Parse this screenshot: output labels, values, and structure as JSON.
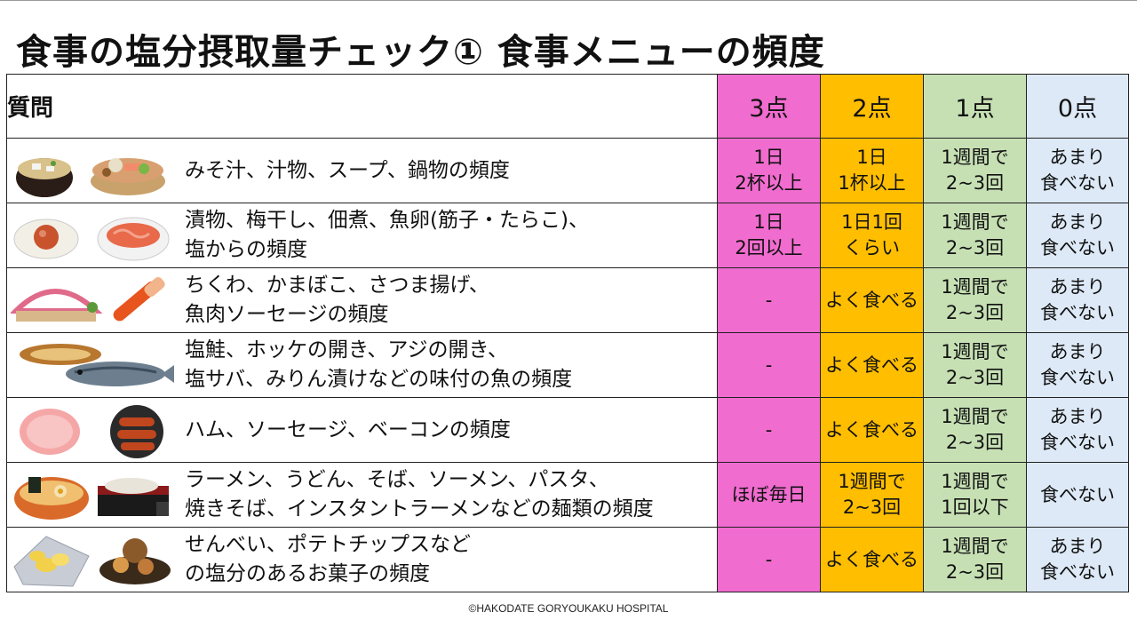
{
  "title": "食事の塩分摂取量チェック① 食事メニューの頻度",
  "header": {
    "question": "質問",
    "p3": "3点",
    "p2": "2点",
    "p1": "1点",
    "p0": "0点"
  },
  "colors": {
    "p3": "#f06ccf",
    "p2": "#ffbe00",
    "p1": "#c6e0b4",
    "p0": "#dde9f6"
  },
  "rows": [
    {
      "q1": "みそ汁、汁物、スープ、鍋物の頻度",
      "q2": "",
      "a3a": "1日",
      "a3b": "2杯以上",
      "a2a": "1日",
      "a2b": "1杯以上",
      "a1a": "1週間で",
      "a1b": "2~3回",
      "a0a": "あまり",
      "a0b": "食べない",
      "icons": [
        "miso-soup-icon",
        "hot-pot-icon"
      ]
    },
    {
      "q1": "漬物、梅干し、佃煮、魚卵(筋子・たらこ)、",
      "q2": "塩からの頻度",
      "a3a": "1日",
      "a3b": "2回以上",
      "a2a": "1日1回",
      "a2b": "くらい",
      "a1a": "1週間で",
      "a1b": "2~3回",
      "a0a": "あまり",
      "a0b": "食べない",
      "icons": [
        "umeboshi-icon",
        "shiokara-icon"
      ]
    },
    {
      "q1": "ちくわ、かまぼこ、さつま揚げ、",
      "q2": "魚肉ソーセージの頻度",
      "a3a": "-",
      "a3b": "",
      "a2a": "よく食べる",
      "a2b": "",
      "a1a": "1週間で",
      "a1b": "2~3回",
      "a0a": "あまり",
      "a0b": "食べない",
      "icons": [
        "kamaboko-icon",
        "fish-sausage-icon"
      ]
    },
    {
      "q1": "塩鮭、ホッケの開き、アジの開き、",
      "q2": "塩サバ、みりん漬けなどの味付の魚の頻度",
      "a3a": "-",
      "a3b": "",
      "a2a": "よく食べる",
      "a2b": "",
      "a1a": "1週間で",
      "a1b": "2~3回",
      "a0a": "あまり",
      "a0b": "食べない",
      "icons": [
        "grilled-fish-icon",
        "salted-mackerel-icon"
      ]
    },
    {
      "q1": "ハム、ソーセージ、ベーコンの頻度",
      "q2": "",
      "a3a": "-",
      "a3b": "",
      "a2a": "よく食べる",
      "a2b": "",
      "a1a": "1週間で",
      "a1b": "2~3回",
      "a0a": "あまり",
      "a0b": "食べない",
      "icons": [
        "ham-icon",
        "sausage-pan-icon"
      ]
    },
    {
      "q1": "ラーメン、うどん、そば、ソーメン、パスタ、",
      "q2": "焼きそば、インスタントラーメンなどの麺類の頻度",
      "a3a": "ほぼ毎日",
      "a3b": "",
      "a2a": "1週間で",
      "a2b": "2~3回",
      "a1a": "1週間で",
      "a1b": "1回以下",
      "a0a": "食べない",
      "a0b": "",
      "icons": [
        "ramen-icon",
        "soba-icon"
      ]
    },
    {
      "q1": "せんべい、ポテトチップスなど",
      "q2": "の塩分のあるお菓子の頻度",
      "a3a": "-",
      "a3b": "",
      "a2a": "よく食べる",
      "a2b": "",
      "a1a": "1週間で",
      "a1b": "2~3回",
      "a0a": "あまり",
      "a0b": "食べない",
      "icons": [
        "potato-chips-icon",
        "senbei-icon"
      ]
    }
  ],
  "copyright": "©HAKODATE GORYOUKAKU HOSPITAL"
}
